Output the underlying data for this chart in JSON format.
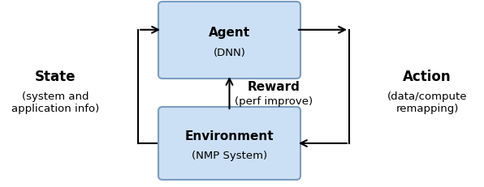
{
  "bg_color": "#ffffff",
  "box_fill": "#cce0f5",
  "box_edge": "#7a9dc0",
  "figsize": [
    5.96,
    2.32
  ],
  "dpi": 100,
  "agent_title": "Agent",
  "agent_sub": "(DNN)",
  "env_title": "Environment",
  "env_sub": "(NMP System)",
  "state_title": "State",
  "state_sub1": "(system and",
  "state_sub2": "application info)",
  "action_title": "Action",
  "action_sub1": "(data/compute",
  "action_sub2": "remapping)",
  "reward_title": "Reward",
  "reward_sub": "(perf improve)"
}
